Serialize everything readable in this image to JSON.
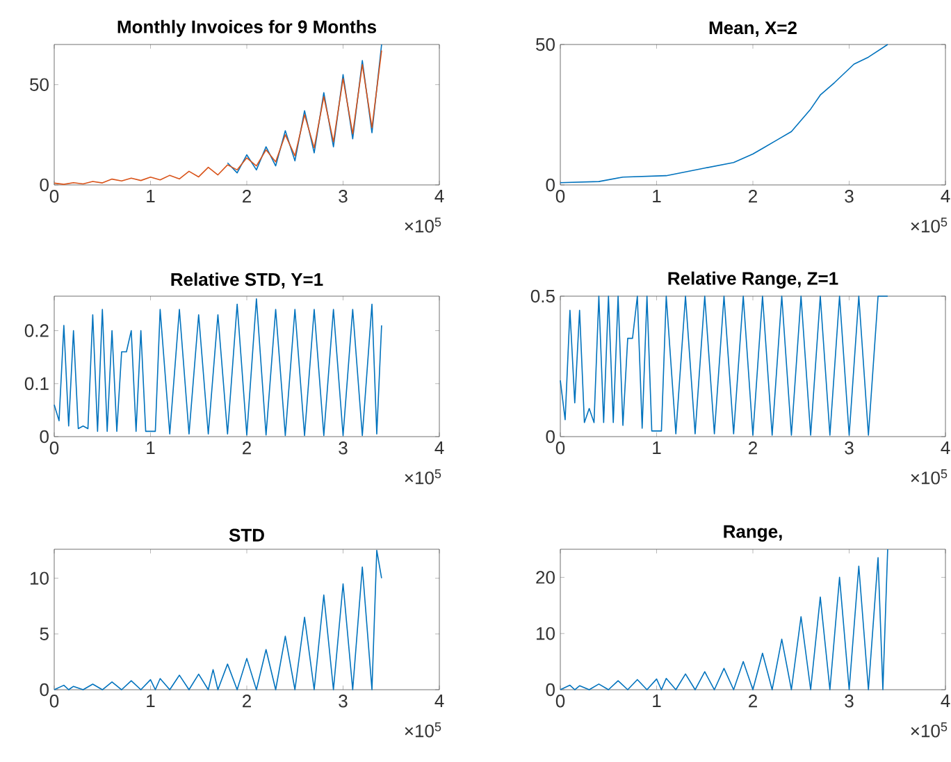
{
  "chart_data": [
    {
      "type": "line",
      "title": "Monthly Invoices for 9 Months",
      "xlim": [
        0,
        4
      ],
      "ylim": [
        0,
        70
      ],
      "xticks": [
        0,
        1,
        2,
        3,
        4
      ],
      "yticks": [
        0,
        50
      ],
      "annotations": [
        "×10$^{5}$"
      ],
      "series": [
        {
          "color": "#0072bd",
          "x": [
            1.8,
            1.9,
            2.0,
            2.1,
            2.2,
            2.3,
            2.4,
            2.5,
            2.6,
            2.7,
            2.8,
            2.9,
            3.0,
            3.1,
            3.2,
            3.3,
            3.4
          ],
          "values": [
            11,
            6,
            15,
            7.5,
            19,
            9.5,
            27,
            12,
            37,
            16,
            46,
            19,
            55,
            23,
            62,
            26,
            70
          ]
        },
        {
          "color": "#d95319",
          "x": [
            0,
            0.1,
            0.2,
            0.3,
            0.4,
            0.5,
            0.6,
            0.7,
            0.8,
            0.9,
            1.0,
            1.1,
            1.2,
            1.3,
            1.4,
            1.5,
            1.6,
            1.7,
            1.8,
            1.9,
            2.0,
            2.1,
            2.2,
            2.3,
            2.4,
            2.5,
            2.6,
            2.7,
            2.8,
            2.9,
            3.0,
            3.1,
            3.2,
            3.3,
            3.4
          ],
          "values": [
            0.9,
            0.3,
            1.1,
            0.5,
            1.7,
            1,
            2.9,
            2,
            3.4,
            2.2,
            3.9,
            2.5,
            4.8,
            3,
            6.8,
            4,
            8.8,
            5,
            10,
            7.5,
            13.5,
            9.5,
            17.5,
            11.5,
            25,
            14.5,
            35,
            18.5,
            44,
            21.5,
            53,
            25.5,
            60,
            28.5,
            67
          ]
        }
      ]
    },
    {
      "type": "line",
      "title": "Mean, X=2",
      "xlim": [
        0,
        4
      ],
      "ylim": [
        0,
        50
      ],
      "xticks": [
        0,
        1,
        2,
        3,
        4
      ],
      "yticks": [
        0,
        50
      ],
      "annotations": [
        "×10$^{5}$"
      ],
      "series": [
        {
          "color": "#0072bd",
          "x": [
            0,
            0.4,
            0.65,
            1.1,
            1.5,
            1.8,
            2.0,
            2.1,
            2.25,
            2.4,
            2.5,
            2.6,
            2.7,
            2.85,
            3.05,
            3.2,
            3.4
          ],
          "values": [
            0.8,
            1.2,
            2.8,
            3.3,
            6,
            8,
            11,
            13,
            16,
            19,
            23,
            27,
            32,
            36.5,
            43,
            45.5,
            50
          ]
        }
      ]
    },
    {
      "type": "line",
      "title": "Relative STD, Y=1",
      "xlim": [
        0,
        4
      ],
      "ylim": [
        0,
        0.265
      ],
      "xticks": [
        0,
        1,
        2,
        3,
        4
      ],
      "yticks": [
        0,
        0.1,
        0.2
      ],
      "annotations": [
        "×10$^{5}$"
      ],
      "series": [
        {
          "color": "#0072bd",
          "x": [
            0,
            0.05,
            0.1,
            0.15,
            0.2,
            0.25,
            0.3,
            0.35,
            0.4,
            0.45,
            0.5,
            0.55,
            0.6,
            0.65,
            0.7,
            0.75,
            0.8,
            0.85,
            0.9,
            0.95,
            1.0,
            1.05,
            1.1,
            1.2,
            1.3,
            1.4,
            1.5,
            1.6,
            1.7,
            1.8,
            1.9,
            2.0,
            2.1,
            2.2,
            2.3,
            2.4,
            2.5,
            2.6,
            2.7,
            2.8,
            2.9,
            3.0,
            3.1,
            3.2,
            3.3,
            3.35,
            3.4
          ],
          "values": [
            0.06,
            0.03,
            0.21,
            0.02,
            0.2,
            0.015,
            0.02,
            0.015,
            0.23,
            0.01,
            0.24,
            0.01,
            0.2,
            0.01,
            0.16,
            0.16,
            0.2,
            0.01,
            0.2,
            0.01,
            0.01,
            0.01,
            0.24,
            0.005,
            0.24,
            0.005,
            0.23,
            0.005,
            0.23,
            0.005,
            0.25,
            0.003,
            0.26,
            0.003,
            0.24,
            0.002,
            0.24,
            0.002,
            0.24,
            0.002,
            0.24,
            0.002,
            0.24,
            0.002,
            0.25,
            0.005,
            0.21
          ]
        }
      ]
    },
    {
      "type": "line",
      "title": "Relative Range, Z=1",
      "xlim": [
        0,
        4
      ],
      "ylim": [
        0,
        0.5
      ],
      "xticks": [
        0,
        1,
        2,
        3,
        4
      ],
      "yticks": [
        0,
        0.5
      ],
      "annotations": [
        "×10$^{5}$"
      ],
      "series": [
        {
          "color": "#0072bd",
          "x": [
            0,
            0.05,
            0.1,
            0.15,
            0.2,
            0.25,
            0.3,
            0.35,
            0.4,
            0.45,
            0.5,
            0.55,
            0.6,
            0.65,
            0.7,
            0.75,
            0.8,
            0.85,
            0.9,
            0.95,
            1.0,
            1.05,
            1.1,
            1.2,
            1.3,
            1.4,
            1.5,
            1.6,
            1.7,
            1.8,
            1.9,
            2.0,
            2.1,
            2.2,
            2.3,
            2.4,
            2.5,
            2.6,
            2.7,
            2.8,
            2.9,
            3.0,
            3.1,
            3.2,
            3.3,
            3.4
          ],
          "values": [
            0.2,
            0.06,
            0.45,
            0.12,
            0.45,
            0.05,
            0.1,
            0.05,
            0.5,
            0.05,
            0.5,
            0.05,
            0.5,
            0.04,
            0.35,
            0.35,
            0.5,
            0.03,
            0.5,
            0.02,
            0.02,
            0.02,
            0.5,
            0.01,
            0.5,
            0.01,
            0.5,
            0.01,
            0.5,
            0.01,
            0.5,
            0.005,
            0.5,
            0.005,
            0.5,
            0.005,
            0.5,
            0.005,
            0.5,
            0.005,
            0.5,
            0.005,
            0.5,
            0.005,
            0.5,
            0.5
          ]
        }
      ]
    },
    {
      "type": "line",
      "title": "STD",
      "xlim": [
        0,
        4
      ],
      "ylim": [
        0,
        12.6
      ],
      "xticks": [
        0,
        1,
        2,
        3,
        4
      ],
      "yticks": [
        0,
        5,
        10
      ],
      "annotations": [
        "×10$^{5}$"
      ],
      "series": [
        {
          "color": "#0072bd",
          "x": [
            0,
            0.1,
            0.15,
            0.2,
            0.3,
            0.4,
            0.5,
            0.6,
            0.7,
            0.8,
            0.9,
            1.0,
            1.05,
            1.1,
            1.2,
            1.3,
            1.4,
            1.5,
            1.6,
            1.65,
            1.7,
            1.8,
            1.9,
            2.0,
            2.1,
            2.2,
            2.3,
            2.4,
            2.5,
            2.6,
            2.7,
            2.8,
            2.9,
            3.0,
            3.1,
            3.2,
            3.3,
            3.35,
            3.4
          ],
          "values": [
            0,
            0.4,
            0,
            0.3,
            0,
            0.5,
            0,
            0.7,
            0,
            0.8,
            0,
            0.9,
            0,
            1,
            0,
            1.3,
            0,
            1.4,
            0,
            1.8,
            0,
            2.3,
            0,
            2.8,
            0,
            3.6,
            0,
            4.8,
            0,
            6.5,
            0,
            8.5,
            0,
            9.5,
            0,
            11,
            0,
            12.5,
            10
          ]
        }
      ]
    },
    {
      "type": "line",
      "title": "Range,",
      "xlim": [
        0,
        4
      ],
      "ylim": [
        0,
        25
      ],
      "xticks": [
        0,
        1,
        2,
        3,
        4
      ],
      "yticks": [
        0,
        10,
        20
      ],
      "annotations": [
        "×10$^{5}$"
      ],
      "series": [
        {
          "color": "#0072bd",
          "x": [
            0,
            0.1,
            0.15,
            0.2,
            0.3,
            0.4,
            0.5,
            0.6,
            0.7,
            0.8,
            0.9,
            1.0,
            1.05,
            1.1,
            1.2,
            1.3,
            1.4,
            1.5,
            1.6,
            1.7,
            1.8,
            1.9,
            2.0,
            2.1,
            2.2,
            2.3,
            2.4,
            2.5,
            2.6,
            2.7,
            2.8,
            2.9,
            3.0,
            3.1,
            3.2,
            3.3,
            3.35,
            3.4
          ],
          "values": [
            0,
            0.8,
            0,
            0.7,
            0,
            1,
            0,
            1.6,
            0,
            1.8,
            0,
            1.9,
            0,
            2,
            0,
            2.8,
            0,
            3.2,
            0,
            3.8,
            0,
            5,
            0,
            6.5,
            0,
            9,
            0,
            13,
            0,
            16.5,
            0,
            20,
            0,
            22,
            0,
            23.5,
            0,
            25
          ]
        }
      ]
    }
  ]
}
